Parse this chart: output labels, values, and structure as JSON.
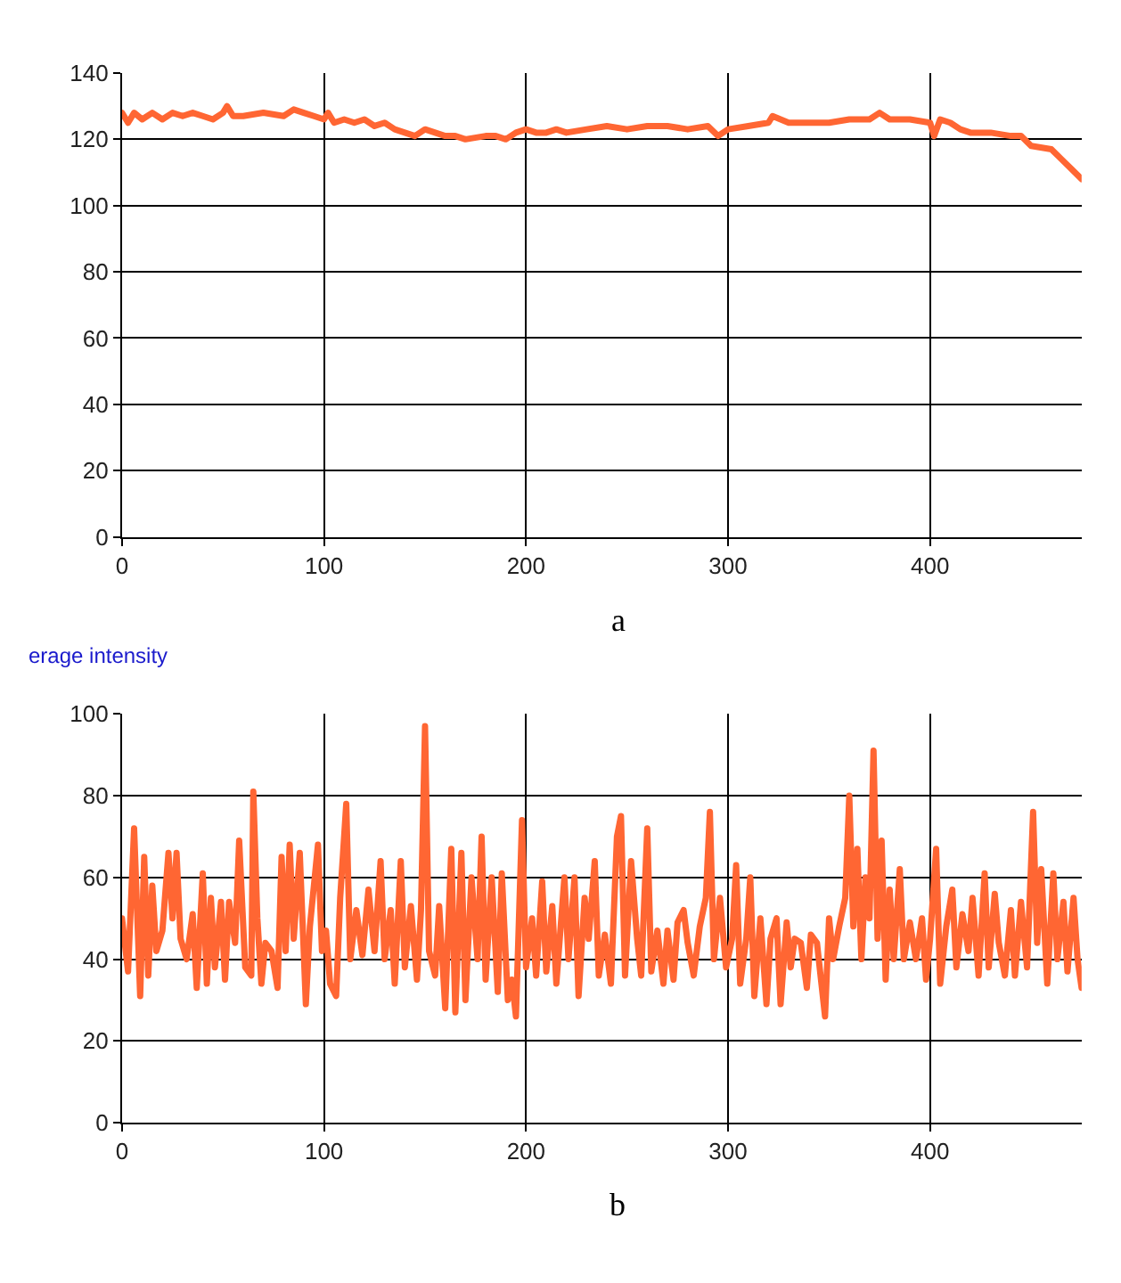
{
  "chart_data": [
    {
      "type": "line",
      "annotations": [
        "a"
      ],
      "color": "#ff6633",
      "xlim": [
        0,
        475
      ],
      "ylim": [
        0,
        140
      ],
      "xticks": [
        0,
        100,
        200,
        300,
        400
      ],
      "yticks": [
        0,
        20,
        40,
        60,
        80,
        100,
        120,
        140
      ],
      "grid": true,
      "x": [
        0,
        3,
        6,
        10,
        15,
        20,
        25,
        30,
        35,
        40,
        45,
        50,
        52,
        55,
        60,
        70,
        80,
        85,
        90,
        95,
        100,
        102,
        105,
        110,
        115,
        120,
        125,
        130,
        135,
        140,
        145,
        150,
        155,
        160,
        165,
        170,
        180,
        185,
        190,
        195,
        200,
        205,
        210,
        215,
        220,
        230,
        240,
        250,
        260,
        270,
        280,
        290,
        295,
        300,
        310,
        320,
        322,
        330,
        340,
        350,
        360,
        370,
        375,
        380,
        390,
        400,
        402,
        405,
        410,
        415,
        420,
        430,
        440,
        445,
        450,
        460,
        465,
        470,
        475
      ],
      "values": [
        128,
        125,
        128,
        126,
        128,
        126,
        128,
        127,
        128,
        127,
        126,
        128,
        130,
        127,
        127,
        128,
        127,
        129,
        128,
        127,
        126,
        128,
        125,
        126,
        125,
        126,
        124,
        125,
        123,
        122,
        121,
        123,
        122,
        121,
        121,
        120,
        121,
        121,
        120,
        122,
        123,
        122,
        122,
        123,
        122,
        123,
        124,
        123,
        124,
        124,
        123,
        124,
        121,
        123,
        124,
        125,
        127,
        125,
        125,
        125,
        126,
        126,
        128,
        126,
        126,
        125,
        121,
        126,
        125,
        123,
        122,
        122,
        121,
        121,
        118,
        117,
        114,
        111,
        108
      ]
    },
    {
      "type": "line",
      "title": "erage intensity",
      "annotations": [
        "b"
      ],
      "color": "#ff6633",
      "xlim": [
        0,
        475
      ],
      "ylim": [
        0,
        100
      ],
      "xticks": [
        0,
        100,
        200,
        300,
        400
      ],
      "yticks": [
        0,
        20,
        40,
        60,
        80,
        100
      ],
      "grid": true,
      "x": [
        0,
        3,
        6,
        9,
        11,
        13,
        15,
        17,
        20,
        23,
        25,
        27,
        29,
        32,
        35,
        37,
        40,
        42,
        44,
        46,
        49,
        51,
        53,
        56,
        58,
        61,
        64,
        65,
        67,
        69,
        71,
        74,
        77,
        79,
        81,
        83,
        85,
        88,
        91,
        93,
        97,
        99,
        101,
        103,
        106,
        108,
        111,
        113,
        116,
        119,
        122,
        125,
        128,
        130,
        133,
        135,
        138,
        140,
        143,
        146,
        148,
        150,
        152,
        155,
        157,
        160,
        163,
        165,
        168,
        170,
        173,
        176,
        178,
        180,
        183,
        186,
        188,
        191,
        193,
        195,
        198,
        200,
        203,
        205,
        208,
        210,
        213,
        215,
        219,
        221,
        224,
        226,
        229,
        231,
        234,
        236,
        239,
        242,
        245,
        247,
        249,
        252,
        255,
        257,
        260,
        262,
        265,
        268,
        270,
        273,
        275,
        278,
        280,
        283,
        286,
        289,
        291,
        293,
        296,
        299,
        302,
        304,
        306,
        309,
        311,
        313,
        316,
        319,
        321,
        324,
        326,
        329,
        331,
        333,
        336,
        339,
        341,
        344,
        346,
        348,
        350,
        352,
        355,
        358,
        360,
        362,
        364,
        366,
        368,
        370,
        372,
        374,
        376,
        378,
        380,
        382,
        385,
        387,
        390,
        393,
        396,
        398,
        400,
        403,
        405,
        408,
        411,
        413,
        416,
        419,
        421,
        424,
        427,
        429,
        432,
        434,
        437,
        440,
        442,
        445,
        448,
        451,
        453,
        455,
        458,
        461,
        463,
        466,
        468,
        471,
        473,
        475
      ],
      "values": [
        50,
        37,
        72,
        31,
        65,
        36,
        58,
        42,
        47,
        66,
        50,
        66,
        45,
        40,
        51,
        33,
        61,
        34,
        55,
        38,
        54,
        35,
        54,
        44,
        69,
        38,
        36,
        81,
        50,
        34,
        44,
        42,
        33,
        65,
        42,
        68,
        45,
        66,
        29,
        48,
        68,
        42,
        47,
        34,
        31,
        55,
        78,
        40,
        52,
        41,
        57,
        42,
        64,
        40,
        52,
        34,
        64,
        38,
        53,
        35,
        52,
        97,
        42,
        36,
        53,
        28,
        67,
        27,
        66,
        30,
        60,
        40,
        70,
        35,
        60,
        32,
        61,
        30,
        35,
        26,
        74,
        38,
        50,
        36,
        59,
        37,
        53,
        34,
        60,
        40,
        60,
        31,
        55,
        45,
        64,
        36,
        46,
        34,
        70,
        75,
        36,
        64,
        45,
        36,
        72,
        37,
        47,
        34,
        47,
        35,
        49,
        52,
        44,
        36,
        48,
        55,
        76,
        40,
        55,
        38,
        45,
        63,
        34,
        45,
        60,
        31,
        50,
        29,
        45,
        50,
        29,
        49,
        38,
        45,
        44,
        33,
        46,
        44,
        35,
        26,
        50,
        40,
        48,
        55,
        80,
        48,
        67,
        40,
        60,
        50,
        91,
        45,
        69,
        35,
        57,
        40,
        62,
        40,
        49,
        40,
        50,
        35,
        45,
        67,
        34,
        48,
        57,
        38,
        51,
        42,
        55,
        36,
        61,
        38,
        56,
        44,
        36,
        52,
        36,
        54,
        38,
        76,
        44,
        62,
        34,
        61,
        40,
        54,
        37,
        55,
        40,
        33
      ]
    }
  ]
}
